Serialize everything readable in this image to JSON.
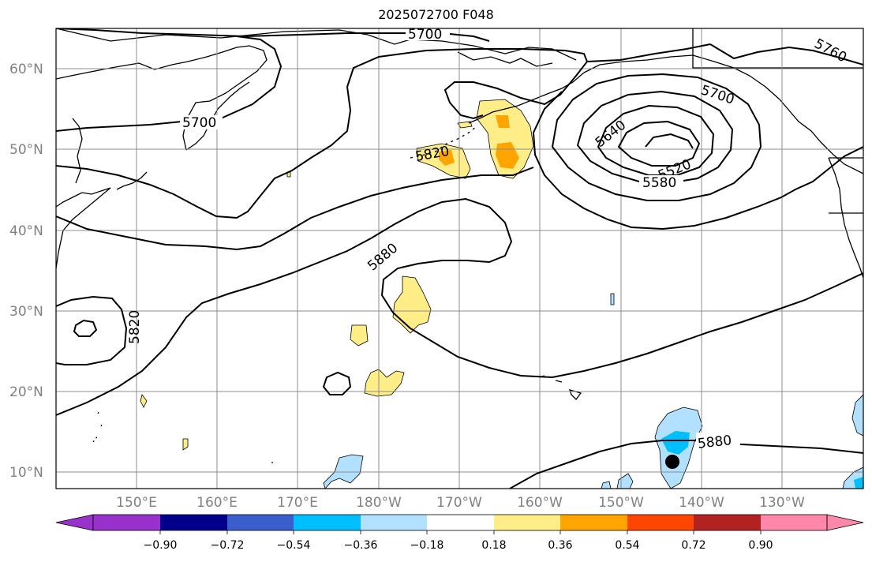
{
  "title": "2025072700 F048",
  "colors": {
    "coast": "#000000",
    "grid": "#8c8c8c",
    "contour": "#000000",
    "fill_pos_1": "#ffee88",
    "fill_pos_2": "#ffa500",
    "fill_neg_1": "#b2e1ff",
    "fill_neg_2": "#00bfff",
    "marker": "#000000"
  },
  "lat_ticks": [
    "60°N",
    "50°N",
    "40°N",
    "30°N",
    "20°N",
    "10°N"
  ],
  "lon_ticks": [
    "150°E",
    "160°E",
    "170°E",
    "180°W",
    "170°W",
    "160°W",
    "150°W",
    "140°W",
    "130°W"
  ],
  "contour_labels": [
    "5700",
    "5760",
    "5700",
    "5700",
    "5640",
    "5520",
    "5580",
    "5820",
    "5880",
    "5820",
    "5880"
  ],
  "colorbar": {
    "colors": [
      "#9932cc",
      "#00008b",
      "#3a5fcd",
      "#00bfff",
      "#b2e1ff",
      "#ffffff",
      "#ffee88",
      "#ffa500",
      "#ff4500",
      "#b22222",
      "#ff88aa"
    ],
    "ticks": [
      "−0.90",
      "−0.72",
      "−0.54",
      "−0.36",
      "−0.18",
      "0.18",
      "0.36",
      "0.54",
      "0.72",
      "0.90"
    ]
  },
  "marker": {
    "name": "storm-center",
    "lat": 11.2,
    "lon": 216.5
  }
}
